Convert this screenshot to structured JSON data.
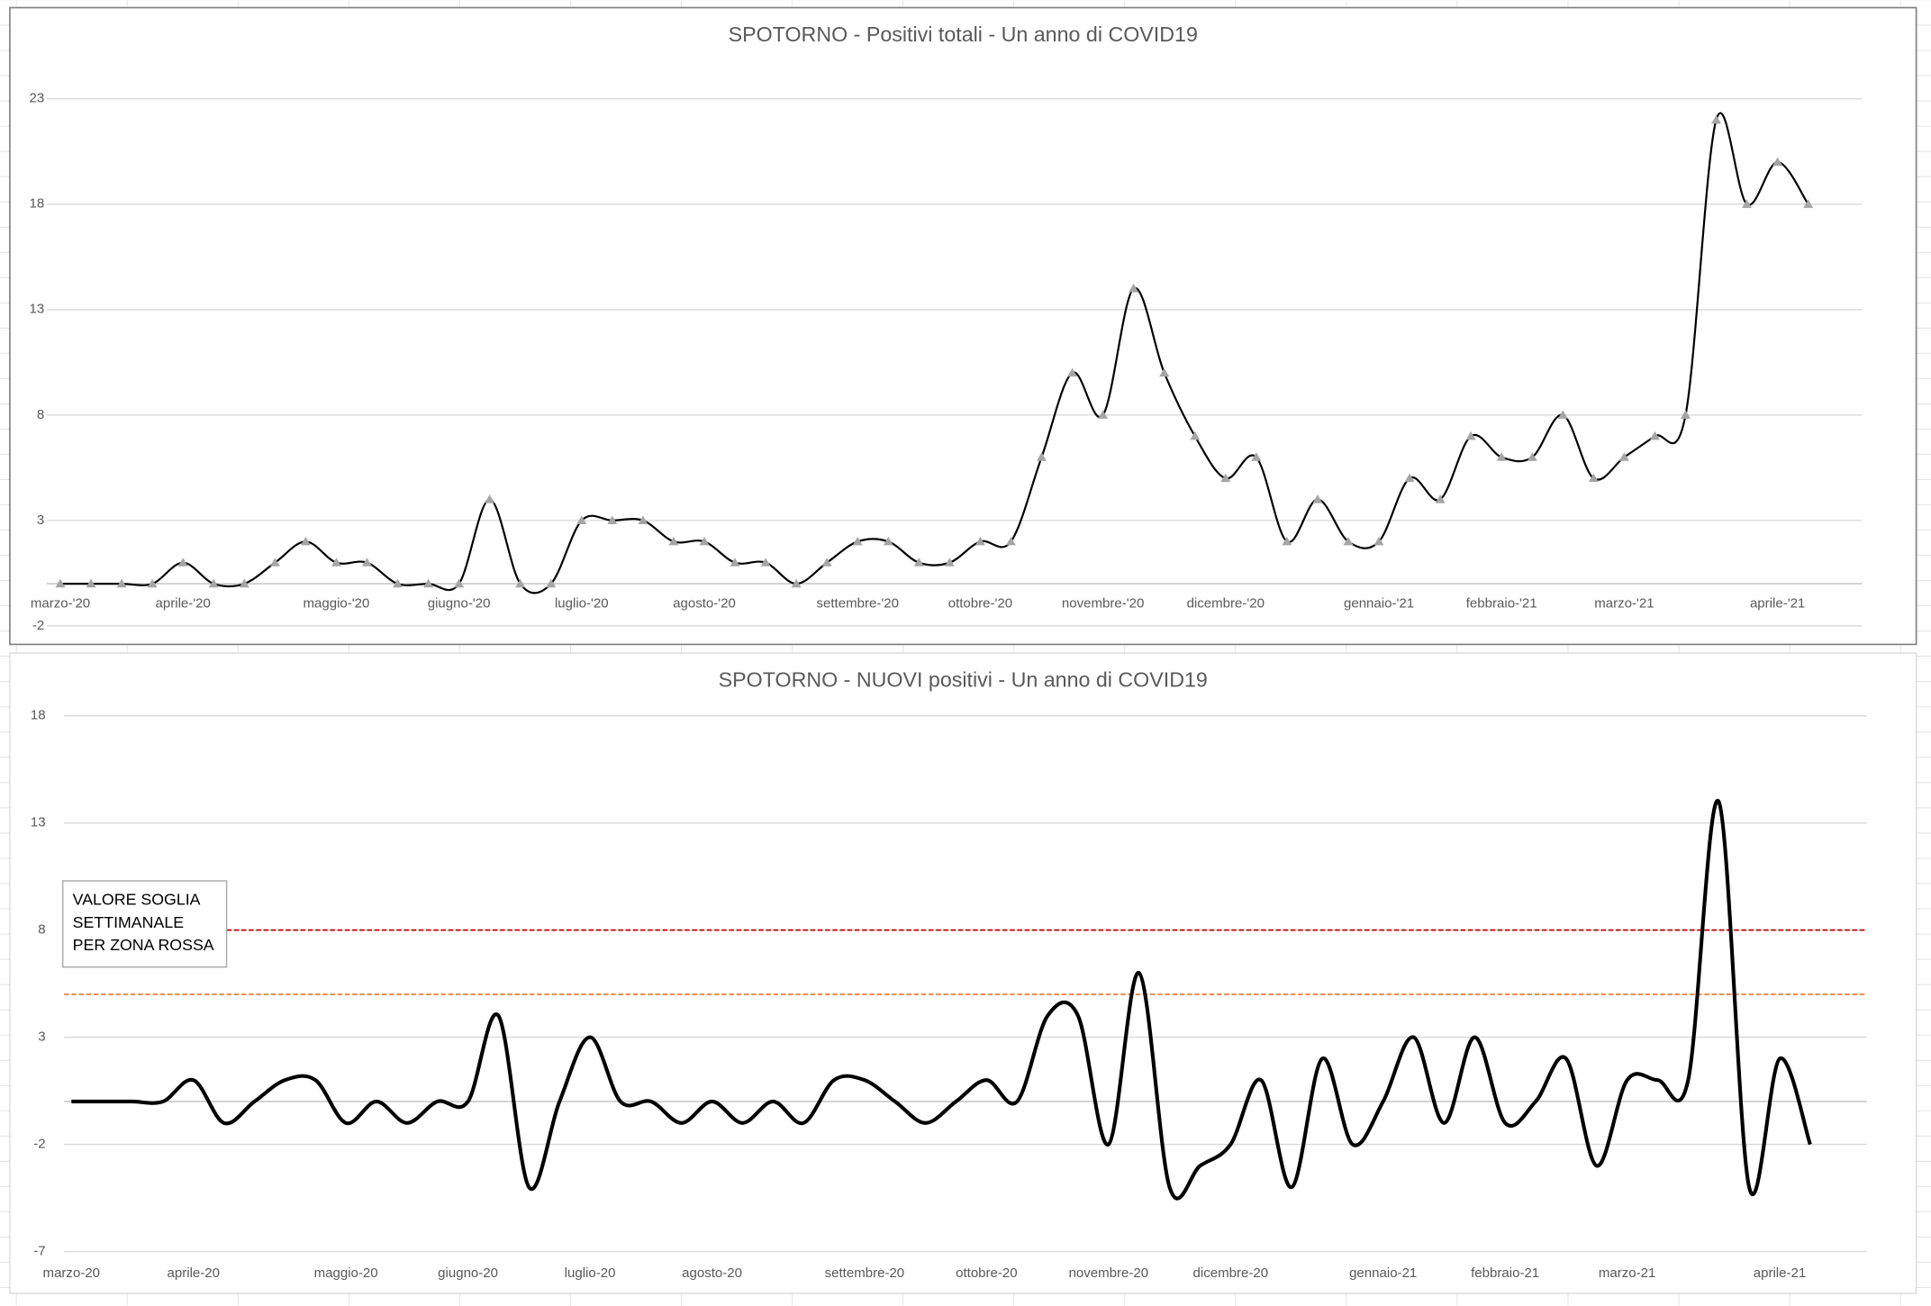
{
  "chart_data": [
    {
      "type": "line",
      "title": "SPOTORNO - Positivi totali - Un anno di COVID19",
      "categories": [
        "marzo-'20",
        null,
        null,
        null,
        "aprile-'20",
        null,
        null,
        null,
        null,
        "maggio-'20",
        null,
        null,
        null,
        "giugno-'20",
        null,
        null,
        null,
        "luglio-'20",
        null,
        null,
        null,
        "agosto-'20",
        null,
        null,
        null,
        null,
        "settembre-'20",
        null,
        null,
        null,
        "ottobre-'20",
        null,
        null,
        null,
        "novembre-'20",
        null,
        null,
        null,
        "dicembre-'20",
        null,
        null,
        null,
        null,
        "gennaio-'21",
        null,
        null,
        null,
        "febbraio-'21",
        null,
        null,
        null,
        "marzo-'21",
        null,
        null,
        null,
        null,
        "aprile-'21",
        null
      ],
      "series": [
        {
          "color": "#000000",
          "marker_color": "#a5a5a5",
          "values": [
            0,
            0,
            0,
            0,
            1,
            0,
            0,
            1,
            2,
            1,
            1,
            0,
            0,
            0,
            4,
            0,
            0,
            3,
            3,
            3,
            2,
            2,
            1,
            1,
            0,
            1,
            2,
            2,
            1,
            1,
            2,
            2,
            6,
            10,
            8,
            14,
            10,
            7,
            5,
            6,
            2,
            4,
            2,
            2,
            5,
            4,
            7,
            6,
            6,
            8,
            5,
            6,
            7,
            8,
            22,
            18,
            20,
            18
          ]
        }
      ],
      "ylim": [
        -2,
        23
      ],
      "yticks": [
        -2,
        3,
        8,
        13,
        18,
        23
      ],
      "grid": true,
      "smooth": true
    },
    {
      "type": "line",
      "title": "SPOTORNO - NUOVI positivi - Un anno di COVID19",
      "categories": [
        "marzo-20",
        null,
        null,
        null,
        "aprile-20",
        null,
        null,
        null,
        null,
        "maggio-20",
        null,
        null,
        null,
        "giugno-20",
        null,
        null,
        null,
        "luglio-20",
        null,
        null,
        null,
        "agosto-20",
        null,
        null,
        null,
        null,
        "settembre-20",
        null,
        null,
        null,
        "ottobre-20",
        null,
        null,
        null,
        "novembre-20",
        null,
        null,
        null,
        "dicembre-20",
        null,
        null,
        null,
        null,
        "gennaio-21",
        null,
        null,
        null,
        "febbraio-21",
        null,
        null,
        null,
        "marzo-21",
        null,
        null,
        null,
        null,
        "aprile-21",
        null
      ],
      "series": [
        {
          "color": "#000000",
          "values": [
            0,
            0,
            0,
            0,
            1,
            -1,
            0,
            1,
            1,
            -1,
            0,
            -1,
            0,
            0,
            4,
            -4,
            0,
            3,
            0,
            0,
            -1,
            0,
            -1,
            0,
            -1,
            1,
            1,
            0,
            -1,
            0,
            1,
            0,
            4,
            4,
            -2,
            6,
            -4,
            -3,
            -2,
            1,
            -4,
            2,
            -2,
            0,
            3,
            -1,
            3,
            -1,
            0,
            2,
            -3,
            1,
            1,
            1,
            14,
            -4,
            2,
            -2
          ]
        }
      ],
      "ylim": [
        -7,
        18
      ],
      "yticks": [
        -7,
        -2,
        3,
        8,
        13,
        18
      ],
      "grid": true,
      "smooth": true,
      "reference_lines": [
        {
          "value": 8,
          "color": "#c00000"
        },
        {
          "value": 5,
          "color": "#ed7d31"
        }
      ],
      "annotation": [
        "VALORE SOGLIA",
        "SETTIMANALE",
        "PER ZONA ROSSA"
      ]
    }
  ]
}
